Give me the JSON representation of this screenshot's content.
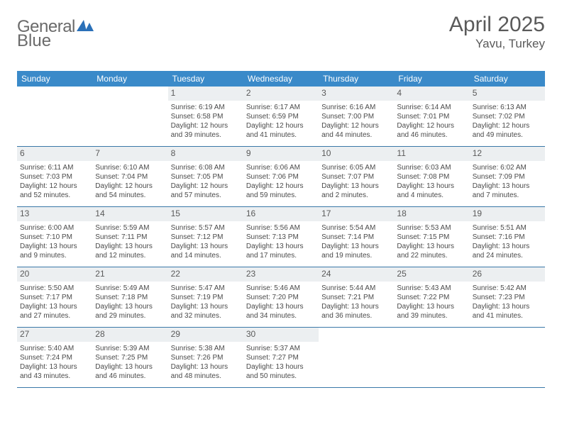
{
  "brand": {
    "word1": "General",
    "word2": "Blue",
    "logo_color": "#2a70b8"
  },
  "title": {
    "month_year": "April 2025",
    "location": "Yavu, Turkey"
  },
  "colors": {
    "header_bg": "#3a8ac9",
    "header_text": "#ffffff",
    "daynum_bg": "#eceff1",
    "rule": "#3a78a8",
    "body_text": "#4a4a4a",
    "title_text": "#5a5a5a"
  },
  "typography": {
    "title_fontsize": 30,
    "location_fontsize": 17,
    "dow_fontsize": 12,
    "daynum_fontsize": 12,
    "body_fontsize": 10
  },
  "calendar": {
    "days_of_week": [
      "Sunday",
      "Monday",
      "Tuesday",
      "Wednesday",
      "Thursday",
      "Friday",
      "Saturday"
    ],
    "weeks": [
      [
        null,
        null,
        {
          "n": "1",
          "sunrise": "6:19 AM",
          "sunset": "6:58 PM",
          "daylight": "12 hours and 39 minutes."
        },
        {
          "n": "2",
          "sunrise": "6:17 AM",
          "sunset": "6:59 PM",
          "daylight": "12 hours and 41 minutes."
        },
        {
          "n": "3",
          "sunrise": "6:16 AM",
          "sunset": "7:00 PM",
          "daylight": "12 hours and 44 minutes."
        },
        {
          "n": "4",
          "sunrise": "6:14 AM",
          "sunset": "7:01 PM",
          "daylight": "12 hours and 46 minutes."
        },
        {
          "n": "5",
          "sunrise": "6:13 AM",
          "sunset": "7:02 PM",
          "daylight": "12 hours and 49 minutes."
        }
      ],
      [
        {
          "n": "6",
          "sunrise": "6:11 AM",
          "sunset": "7:03 PM",
          "daylight": "12 hours and 52 minutes."
        },
        {
          "n": "7",
          "sunrise": "6:10 AM",
          "sunset": "7:04 PM",
          "daylight": "12 hours and 54 minutes."
        },
        {
          "n": "8",
          "sunrise": "6:08 AM",
          "sunset": "7:05 PM",
          "daylight": "12 hours and 57 minutes."
        },
        {
          "n": "9",
          "sunrise": "6:06 AM",
          "sunset": "7:06 PM",
          "daylight": "12 hours and 59 minutes."
        },
        {
          "n": "10",
          "sunrise": "6:05 AM",
          "sunset": "7:07 PM",
          "daylight": "13 hours and 2 minutes."
        },
        {
          "n": "11",
          "sunrise": "6:03 AM",
          "sunset": "7:08 PM",
          "daylight": "13 hours and 4 minutes."
        },
        {
          "n": "12",
          "sunrise": "6:02 AM",
          "sunset": "7:09 PM",
          "daylight": "13 hours and 7 minutes."
        }
      ],
      [
        {
          "n": "13",
          "sunrise": "6:00 AM",
          "sunset": "7:10 PM",
          "daylight": "13 hours and 9 minutes."
        },
        {
          "n": "14",
          "sunrise": "5:59 AM",
          "sunset": "7:11 PM",
          "daylight": "13 hours and 12 minutes."
        },
        {
          "n": "15",
          "sunrise": "5:57 AM",
          "sunset": "7:12 PM",
          "daylight": "13 hours and 14 minutes."
        },
        {
          "n": "16",
          "sunrise": "5:56 AM",
          "sunset": "7:13 PM",
          "daylight": "13 hours and 17 minutes."
        },
        {
          "n": "17",
          "sunrise": "5:54 AM",
          "sunset": "7:14 PM",
          "daylight": "13 hours and 19 minutes."
        },
        {
          "n": "18",
          "sunrise": "5:53 AM",
          "sunset": "7:15 PM",
          "daylight": "13 hours and 22 minutes."
        },
        {
          "n": "19",
          "sunrise": "5:51 AM",
          "sunset": "7:16 PM",
          "daylight": "13 hours and 24 minutes."
        }
      ],
      [
        {
          "n": "20",
          "sunrise": "5:50 AM",
          "sunset": "7:17 PM",
          "daylight": "13 hours and 27 minutes."
        },
        {
          "n": "21",
          "sunrise": "5:49 AM",
          "sunset": "7:18 PM",
          "daylight": "13 hours and 29 minutes."
        },
        {
          "n": "22",
          "sunrise": "5:47 AM",
          "sunset": "7:19 PM",
          "daylight": "13 hours and 32 minutes."
        },
        {
          "n": "23",
          "sunrise": "5:46 AM",
          "sunset": "7:20 PM",
          "daylight": "13 hours and 34 minutes."
        },
        {
          "n": "24",
          "sunrise": "5:44 AM",
          "sunset": "7:21 PM",
          "daylight": "13 hours and 36 minutes."
        },
        {
          "n": "25",
          "sunrise": "5:43 AM",
          "sunset": "7:22 PM",
          "daylight": "13 hours and 39 minutes."
        },
        {
          "n": "26",
          "sunrise": "5:42 AM",
          "sunset": "7:23 PM",
          "daylight": "13 hours and 41 minutes."
        }
      ],
      [
        {
          "n": "27",
          "sunrise": "5:40 AM",
          "sunset": "7:24 PM",
          "daylight": "13 hours and 43 minutes."
        },
        {
          "n": "28",
          "sunrise": "5:39 AM",
          "sunset": "7:25 PM",
          "daylight": "13 hours and 46 minutes."
        },
        {
          "n": "29",
          "sunrise": "5:38 AM",
          "sunset": "7:26 PM",
          "daylight": "13 hours and 48 minutes."
        },
        {
          "n": "30",
          "sunrise": "5:37 AM",
          "sunset": "7:27 PM",
          "daylight": "13 hours and 50 minutes."
        },
        null,
        null,
        null
      ]
    ],
    "labels": {
      "sunrise": "Sunrise:",
      "sunset": "Sunset:",
      "daylight": "Daylight:"
    }
  }
}
